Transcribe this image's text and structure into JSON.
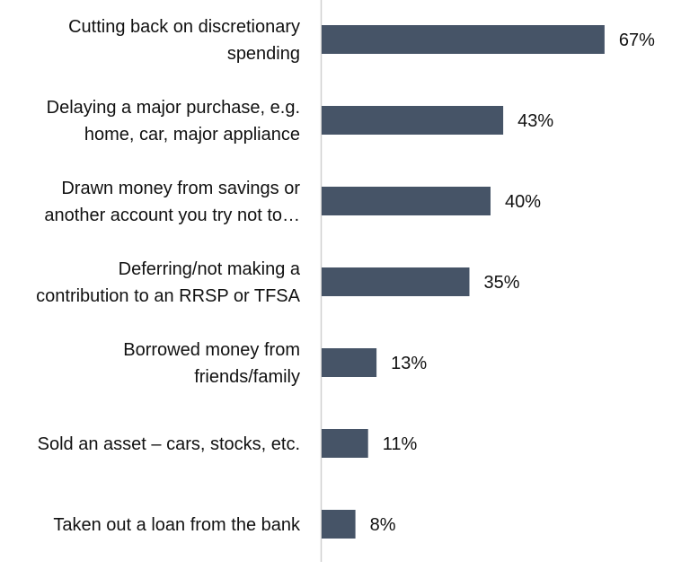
{
  "chart_data": {
    "type": "bar",
    "orientation": "horizontal",
    "categories": [
      [
        "Cutting back on discretionary",
        "spending"
      ],
      [
        "Delaying a major purchase, e.g.",
        "home, car, major appliance"
      ],
      [
        "Drawn money from savings or",
        "another account you try not to…"
      ],
      [
        "Deferring/not making a",
        "contribution to an RRSP or TFSA"
      ],
      [
        "Borrowed money from",
        "friends/family"
      ],
      [
        "Sold an asset – cars, stocks, etc."
      ],
      [
        "Taken out a loan from the bank"
      ]
    ],
    "values": [
      67,
      43,
      40,
      35,
      13,
      11,
      8
    ],
    "value_labels": [
      "67%",
      "43%",
      "40%",
      "35%",
      "13%",
      "11%",
      "8%"
    ],
    "unit": "%",
    "xlim": [
      0,
      100
    ],
    "grid": false,
    "legend": "none",
    "bar_color": "#465467",
    "axis_color": "#d0d0d0"
  }
}
